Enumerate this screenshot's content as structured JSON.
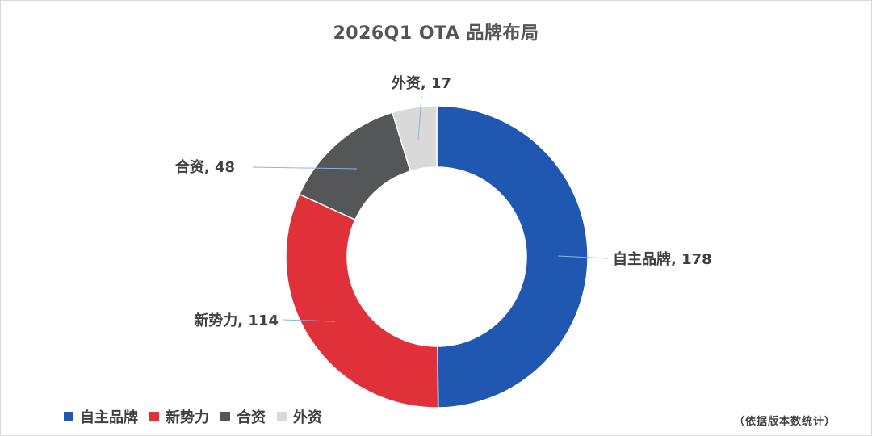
{
  "chart_data": {
    "type": "pie",
    "variant": "donut",
    "title": "2026Q1 OTA 品牌布局",
    "categories": [
      "自主品牌",
      "新势力",
      "合资",
      "外资"
    ],
    "values": [
      178,
      114,
      48,
      17
    ],
    "colors": [
      "#2058b1",
      "#e0313a",
      "#545658",
      "#d9d9d9"
    ],
    "data_labels": [
      "自主品牌, 178",
      "新势力, 114",
      "合资, 48",
      "外资, 17"
    ],
    "legend_position": "bottom-left",
    "start_angle_deg": 0,
    "direction": "clockwise"
  },
  "footnote": "（依据版本数统计）"
}
